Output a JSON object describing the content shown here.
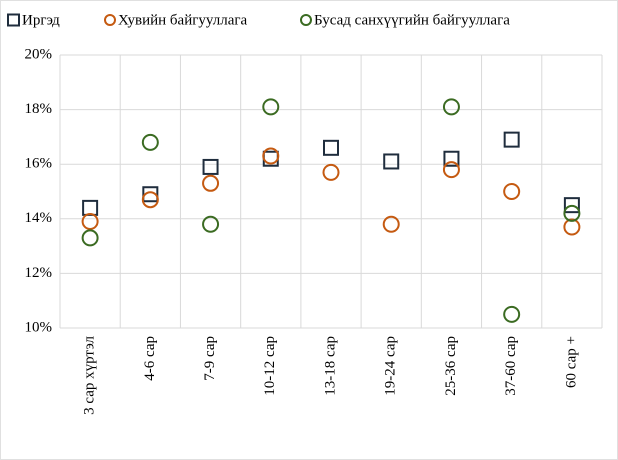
{
  "chart_data": {
    "type": "scatter",
    "categories": [
      "3 сар хүртэл",
      "4-6 сар",
      "7-9 сар",
      "10-12 сар",
      "13-18 сар",
      "19-24 сар",
      "25-36 сар",
      "37-60 сар",
      "60 сар +"
    ],
    "series": [
      {
        "name": "Иргэд",
        "color": "#1f2d3d",
        "marker": "square",
        "values": [
          14.4,
          14.9,
          15.9,
          16.2,
          16.6,
          16.1,
          16.2,
          16.9,
          14.5
        ]
      },
      {
        "name": "Хувийн байгууллага",
        "color": "#c55a11",
        "marker": "circle",
        "values": [
          13.9,
          14.7,
          15.3,
          16.3,
          15.7,
          13.8,
          15.8,
          15.0,
          13.7
        ]
      },
      {
        "name": "Бусад санхүүгийн байгууллага",
        "color": "#3b6b22",
        "marker": "circle",
        "values": [
          13.3,
          16.8,
          13.8,
          18.1,
          null,
          null,
          18.1,
          10.5,
          14.2
        ]
      }
    ],
    "ylim": [
      10,
      20
    ],
    "yticks": [
      {
        "value": 10,
        "label": "10%"
      },
      {
        "value": 12,
        "label": "12%"
      },
      {
        "value": 14,
        "label": "14%"
      },
      {
        "value": 16,
        "label": "16%"
      },
      {
        "value": 18,
        "label": "18%"
      },
      {
        "value": 20,
        "label": "20%"
      }
    ],
    "grid": true
  }
}
